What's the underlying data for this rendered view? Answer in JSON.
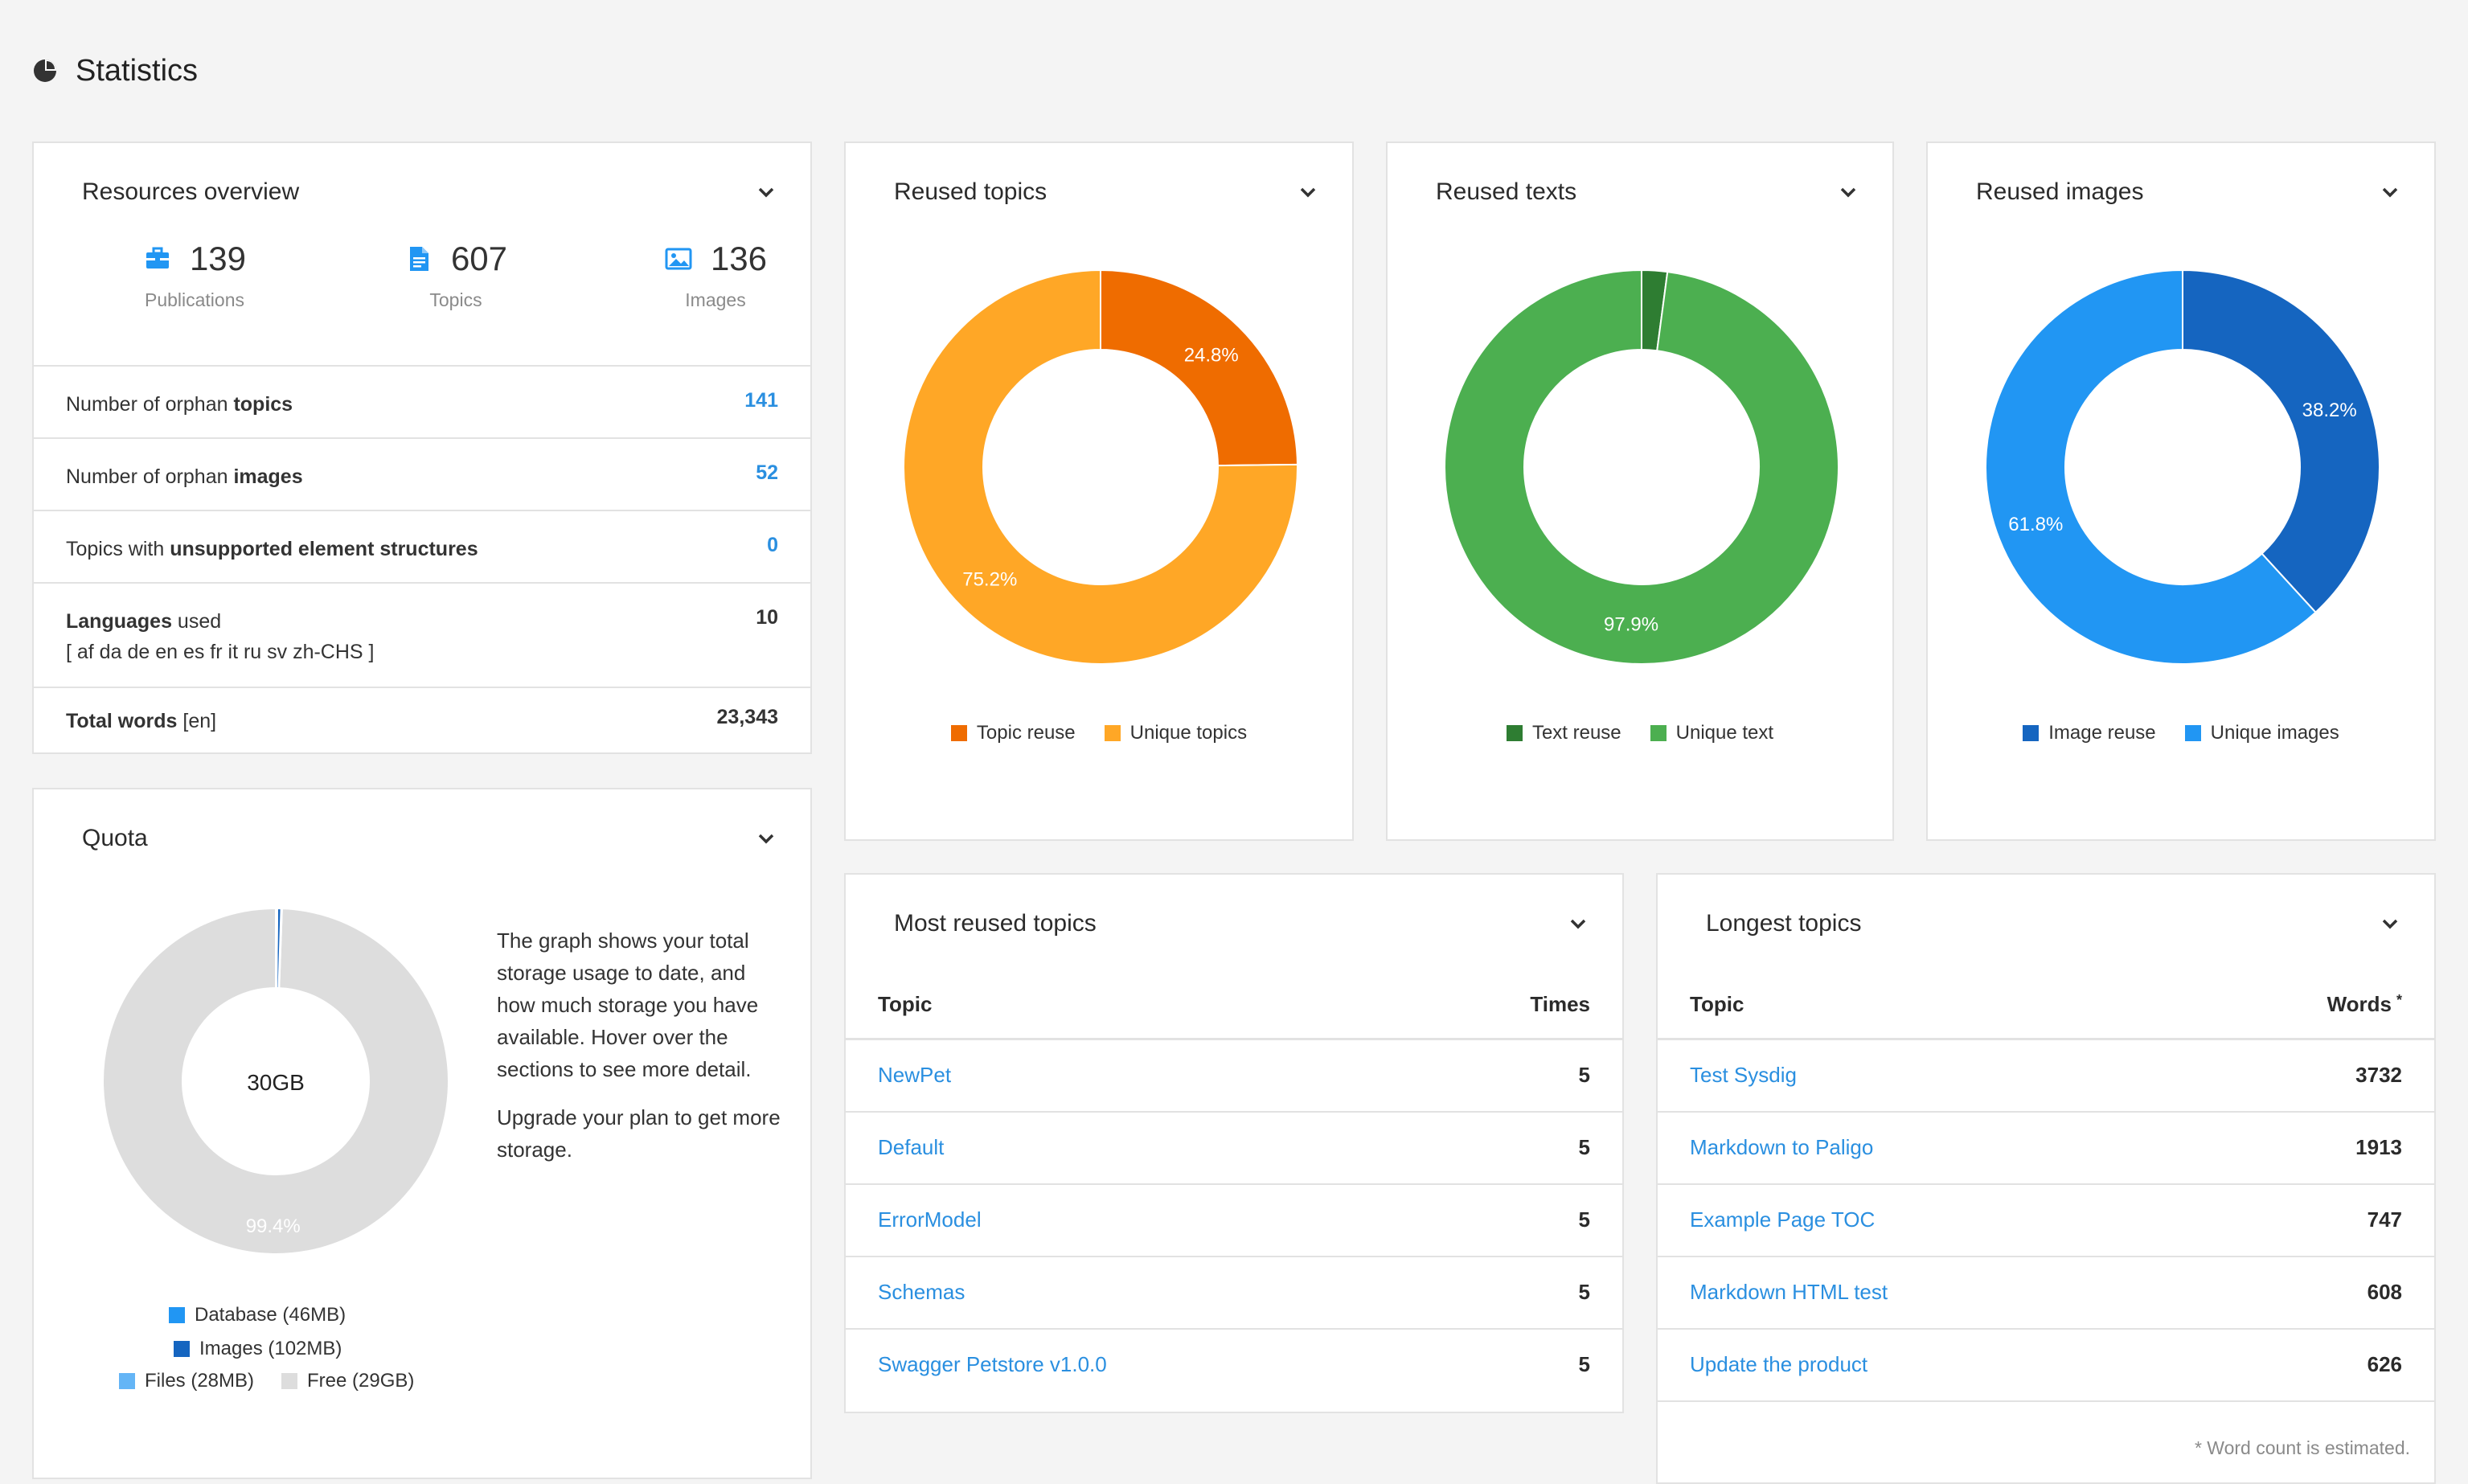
{
  "page": {
    "title": "Statistics"
  },
  "resources": {
    "title": "Resources overview",
    "stats": [
      {
        "value": "139",
        "label": "Publications"
      },
      {
        "value": "607",
        "label": "Topics"
      },
      {
        "value": "136",
        "label": "Images"
      }
    ],
    "rows": [
      {
        "pre": "Number of orphan ",
        "bold": "topics",
        "post": "",
        "value": "141"
      },
      {
        "pre": "Number of orphan ",
        "bold": "images",
        "post": "",
        "value": "52"
      },
      {
        "pre": "Topics with ",
        "bold": "unsupported element structures",
        "post": "",
        "value": "0"
      }
    ],
    "languages": {
      "bold": "Languages",
      "post": " used",
      "list": "[ af da de en es fr it ru sv zh-CHS ]",
      "value": "10"
    },
    "total_words": {
      "bold": "Total words",
      "post": " [en]",
      "value": "23,343"
    }
  },
  "quota": {
    "title": "Quota",
    "center_label": "30GB",
    "free_pct_label": "99.4%",
    "description": "The graph shows your total storage usage to date, and how much storage you have available. Hover over the sections to see more detail.",
    "upgrade": "Upgrade your plan to get more storage.",
    "legend": {
      "database": "Database (46MB)",
      "images": "Images (102MB)",
      "files": "Files (28MB)",
      "free": "Free (29GB)"
    },
    "colors": {
      "database": "#2196f3",
      "images": "#1565c0",
      "files": "#64b5f6",
      "free": "#dddddd"
    }
  },
  "reused_topics": {
    "title": "Reused topics",
    "legend": [
      "Topic reuse",
      "Unique topics"
    ],
    "colors": [
      "#ef6c00",
      "#ffa726"
    ]
  },
  "reused_texts": {
    "title": "Reused texts",
    "legend": [
      "Text reuse",
      "Unique text"
    ],
    "colors": [
      "#2e7d32",
      "#4caf50"
    ]
  },
  "reused_images": {
    "title": "Reused images",
    "legend": [
      "Image reuse",
      "Unique images"
    ],
    "colors": [
      "#1565c0",
      "#2196f3"
    ]
  },
  "chart_data": [
    {
      "type": "pie",
      "categories": [
        "Topic reuse",
        "Unique topics"
      ],
      "values": [
        24.8,
        75.2
      ],
      "labels": [
        "24.8%",
        "75.2%"
      ]
    },
    {
      "type": "pie",
      "categories": [
        "Text reuse",
        "Unique text"
      ],
      "values": [
        2.1,
        97.9
      ],
      "labels": [
        "",
        "97.9%"
      ]
    },
    {
      "type": "pie",
      "categories": [
        "Image reuse",
        "Unique images"
      ],
      "values": [
        38.2,
        61.8
      ],
      "labels": [
        "38.2%",
        "61.8%"
      ]
    },
    {
      "type": "pie",
      "categories": [
        "Database (46MB)",
        "Images (102MB)",
        "Files (28MB)",
        "Free (29GB)"
      ],
      "values": [
        0.15,
        0.34,
        0.09,
        99.42
      ],
      "labels": [
        "",
        "",
        "",
        "99.4%"
      ]
    }
  ],
  "most_reused": {
    "title": "Most reused topics",
    "col_topic": "Topic",
    "col_times": "Times",
    "rows": [
      {
        "topic": "NewPet",
        "value": "5"
      },
      {
        "topic": "Default",
        "value": "5"
      },
      {
        "topic": "ErrorModel",
        "value": "5"
      },
      {
        "topic": "Schemas",
        "value": "5"
      },
      {
        "topic": "Swagger Petstore v1.0.0",
        "value": "5"
      }
    ]
  },
  "longest": {
    "title": "Longest topics",
    "col_topic": "Topic",
    "col_words": "Words",
    "asterisk": "*",
    "rows": [
      {
        "topic": "Test Sysdig",
        "value": "3732"
      },
      {
        "topic": "Markdown to Paligo",
        "value": "1913"
      },
      {
        "topic": "Example Page TOC",
        "value": "747"
      },
      {
        "topic": "Markdown HTML test",
        "value": "608"
      },
      {
        "topic": "Update the product",
        "value": "626"
      }
    ],
    "note": "* Word count is estimated."
  }
}
